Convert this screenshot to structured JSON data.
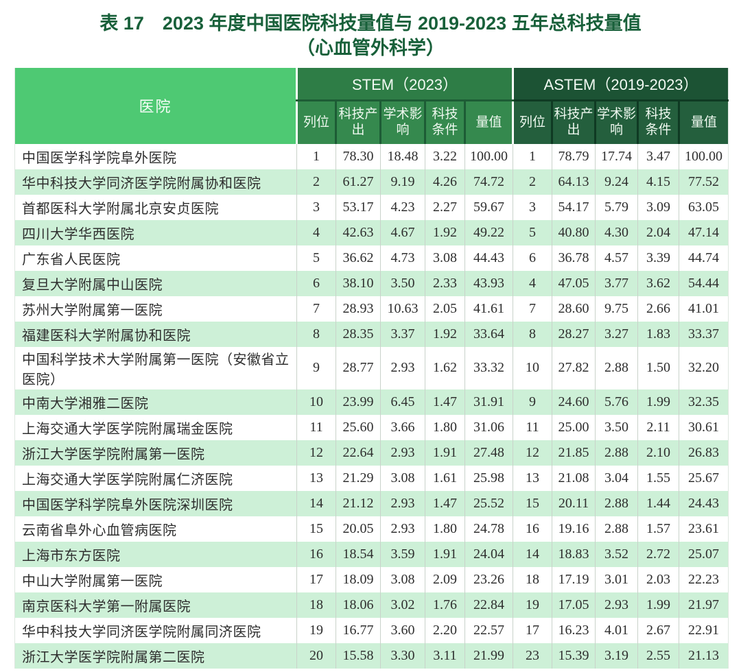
{
  "title": {
    "line1": "表 17　2023 年度中国医院科技量值与 2019-2023 五年总科技量值",
    "line2": "（心血管外科学）"
  },
  "table": {
    "hospital_header": "医院",
    "sections": [
      {
        "name": "STEM（2023）",
        "columns": [
          "列位",
          "科技产出",
          "学术影响",
          "科技条件",
          "量值"
        ]
      },
      {
        "name": "ASTEM（2019-2023）",
        "columns": [
          "列位",
          "科技产出",
          "学术影响",
          "科技条件",
          "量值"
        ]
      }
    ],
    "rows": [
      {
        "hospital": "中国医学科学院阜外医院",
        "stem": [
          "1",
          "78.30",
          "18.48",
          "3.22",
          "100.00"
        ],
        "astem": [
          "1",
          "78.79",
          "17.74",
          "3.47",
          "100.00"
        ]
      },
      {
        "hospital": "华中科技大学同济医学院附属协和医院",
        "stem": [
          "2",
          "61.27",
          "9.19",
          "4.26",
          "74.72"
        ],
        "astem": [
          "2",
          "64.13",
          "9.24",
          "4.15",
          "77.52"
        ]
      },
      {
        "hospital": "首都医科大学附属北京安贞医院",
        "stem": [
          "3",
          "53.17",
          "4.23",
          "2.27",
          "59.67"
        ],
        "astem": [
          "3",
          "54.17",
          "5.79",
          "3.09",
          "63.05"
        ]
      },
      {
        "hospital": "四川大学华西医院",
        "stem": [
          "4",
          "42.63",
          "4.67",
          "1.92",
          "49.22"
        ],
        "astem": [
          "5",
          "40.80",
          "4.30",
          "2.04",
          "47.14"
        ]
      },
      {
        "hospital": "广东省人民医院",
        "stem": [
          "5",
          "36.62",
          "4.73",
          "3.08",
          "44.43"
        ],
        "astem": [
          "6",
          "36.78",
          "4.57",
          "3.39",
          "44.74"
        ]
      },
      {
        "hospital": "复旦大学附属中山医院",
        "stem": [
          "6",
          "38.10",
          "3.50",
          "2.33",
          "43.93"
        ],
        "astem": [
          "4",
          "47.05",
          "3.77",
          "3.62",
          "54.44"
        ]
      },
      {
        "hospital": "苏州大学附属第一医院",
        "stem": [
          "7",
          "28.93",
          "10.63",
          "2.05",
          "41.61"
        ],
        "astem": [
          "7",
          "28.60",
          "9.75",
          "2.66",
          "41.01"
        ]
      },
      {
        "hospital": "福建医科大学附属协和医院",
        "stem": [
          "8",
          "28.35",
          "3.37",
          "1.92",
          "33.64"
        ],
        "astem": [
          "8",
          "28.27",
          "3.27",
          "1.83",
          "33.37"
        ]
      },
      {
        "hospital": "中国科学技术大学附属第一医院（安徽省立医院）",
        "stem": [
          "9",
          "28.77",
          "2.93",
          "1.62",
          "33.32"
        ],
        "astem": [
          "10",
          "27.82",
          "2.88",
          "1.50",
          "32.20"
        ]
      },
      {
        "hospital": "中南大学湘雅二医院",
        "stem": [
          "10",
          "23.99",
          "6.45",
          "1.47",
          "31.91"
        ],
        "astem": [
          "9",
          "24.60",
          "5.76",
          "1.99",
          "32.35"
        ]
      },
      {
        "hospital": "上海交通大学医学院附属瑞金医院",
        "stem": [
          "11",
          "25.60",
          "3.66",
          "1.80",
          "31.06"
        ],
        "astem": [
          "11",
          "25.00",
          "3.50",
          "2.11",
          "30.61"
        ]
      },
      {
        "hospital": "浙江大学医学院附属第一医院",
        "stem": [
          "12",
          "22.64",
          "2.93",
          "1.91",
          "27.48"
        ],
        "astem": [
          "12",
          "21.85",
          "2.88",
          "2.10",
          "26.83"
        ]
      },
      {
        "hospital": "上海交通大学医学院附属仁济医院",
        "stem": [
          "13",
          "21.29",
          "3.08",
          "1.61",
          "25.98"
        ],
        "astem": [
          "13",
          "21.08",
          "3.04",
          "1.55",
          "25.67"
        ]
      },
      {
        "hospital": "中国医学科学院阜外医院深圳医院",
        "stem": [
          "14",
          "21.12",
          "2.93",
          "1.47",
          "25.52"
        ],
        "astem": [
          "15",
          "20.11",
          "2.88",
          "1.44",
          "24.43"
        ]
      },
      {
        "hospital": "云南省阜外心血管病医院",
        "stem": [
          "15",
          "20.05",
          "2.93",
          "1.80",
          "24.78"
        ],
        "astem": [
          "16",
          "19.16",
          "2.88",
          "1.57",
          "23.61"
        ]
      },
      {
        "hospital": "上海市东方医院",
        "stem": [
          "16",
          "18.54",
          "3.59",
          "1.91",
          "24.04"
        ],
        "astem": [
          "14",
          "18.83",
          "3.52",
          "2.72",
          "25.07"
        ]
      },
      {
        "hospital": "中山大学附属第一医院",
        "stem": [
          "17",
          "18.09",
          "3.08",
          "2.09",
          "23.26"
        ],
        "astem": [
          "18",
          "17.19",
          "3.01",
          "2.03",
          "22.23"
        ]
      },
      {
        "hospital": "南京医科大学第一附属医院",
        "stem": [
          "18",
          "18.06",
          "3.02",
          "1.76",
          "22.84"
        ],
        "astem": [
          "19",
          "17.05",
          "2.93",
          "1.99",
          "21.97"
        ]
      },
      {
        "hospital": "华中科技大学同济医学院附属同济医院",
        "stem": [
          "19",
          "16.77",
          "3.60",
          "2.20",
          "22.57"
        ],
        "astem": [
          "17",
          "16.23",
          "4.01",
          "2.67",
          "22.91"
        ]
      },
      {
        "hospital": "浙江大学医学院附属第二医院",
        "stem": [
          "20",
          "15.58",
          "3.30",
          "3.11",
          "21.99"
        ],
        "astem": [
          "23",
          "15.39",
          "3.19",
          "2.55",
          "21.13"
        ]
      }
    ]
  },
  "colors": {
    "title_green": "#18603a",
    "hospital_header_bg": "#4ec973",
    "stem_banner_bg": "#2e7d46",
    "stem_subheader_bg": "#35894e",
    "astem_banner_bg": "#1c5334",
    "astem_subheader_bg": "#245f3d",
    "row_stripe_green": "#cdf0d7",
    "data_text": "#2e2e2e"
  }
}
